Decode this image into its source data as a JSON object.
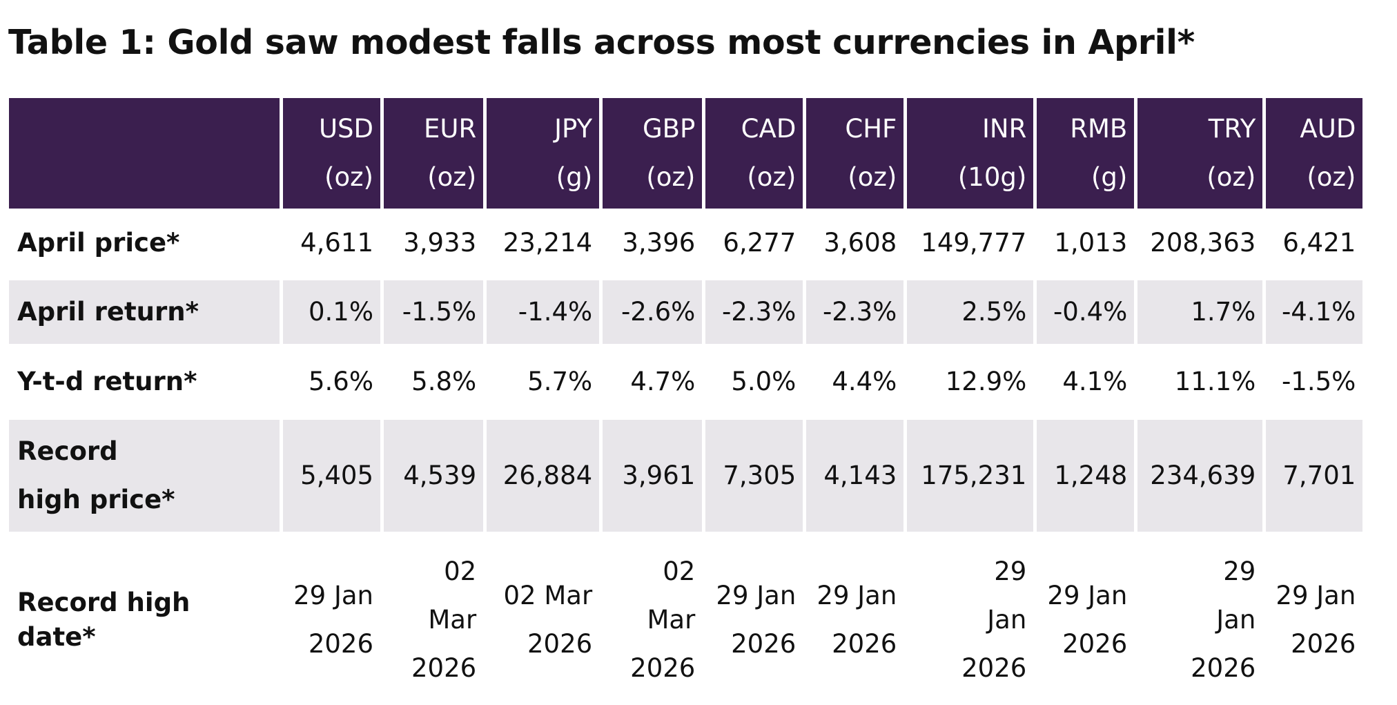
{
  "title": "Table 1: Gold saw modest falls across most currencies in April*",
  "columns": [
    {
      "currency": "USD",
      "unit": "(oz)"
    },
    {
      "currency": "EUR",
      "unit": "(oz)"
    },
    {
      "currency": "JPY",
      "unit": "(g)"
    },
    {
      "currency": "GBP",
      "unit": "(oz)"
    },
    {
      "currency": "CAD",
      "unit": "(oz)"
    },
    {
      "currency": "CHF",
      "unit": "(oz)"
    },
    {
      "currency": "INR",
      "unit": "(10g)"
    },
    {
      "currency": "RMB",
      "unit": "(g)"
    },
    {
      "currency": "TRY",
      "unit": "(oz)"
    },
    {
      "currency": "AUD",
      "unit": "(oz)"
    }
  ],
  "rows": [
    {
      "label": "April price*",
      "values": [
        "4,611",
        "3,933",
        "23,214",
        "3,396",
        "6,277",
        "3,608",
        "149,777",
        "1,013",
        "208,363",
        "6,421"
      ]
    },
    {
      "label": "April return*",
      "values": [
        "0.1%",
        "-1.5%",
        "-1.4%",
        "-2.6%",
        "-2.3%",
        "-2.3%",
        "2.5%",
        "-0.4%",
        "1.7%",
        "-4.1%"
      ]
    },
    {
      "label": "Y-t-d return*",
      "values": [
        "5.6%",
        "5.8%",
        "5.7%",
        "4.7%",
        "5.0%",
        "4.4%",
        "12.9%",
        "4.1%",
        "11.1%",
        "-1.5%"
      ]
    },
    {
      "label": "Record high price*",
      "values": [
        "5,405",
        "4,539",
        "26,884",
        "3,961",
        "7,305",
        "4,143",
        "175,231",
        "1,248",
        "234,639",
        "7,701"
      ]
    },
    {
      "label": "Record high date*",
      "values": [
        "29 Jan 2026",
        "02 Mar 2026",
        "02 Mar 2026",
        "02 Mar 2026",
        "29 Jan 2026",
        "29 Jan 2026",
        "29 Jan 2026",
        "29 Jan 2026",
        "29 Jan 2026",
        "29 Jan 2026"
      ]
    }
  ],
  "colors": {
    "header_bg": "#3b1f4f",
    "header_text": "#ffffff",
    "shaded_row": "#e8e6ea"
  }
}
